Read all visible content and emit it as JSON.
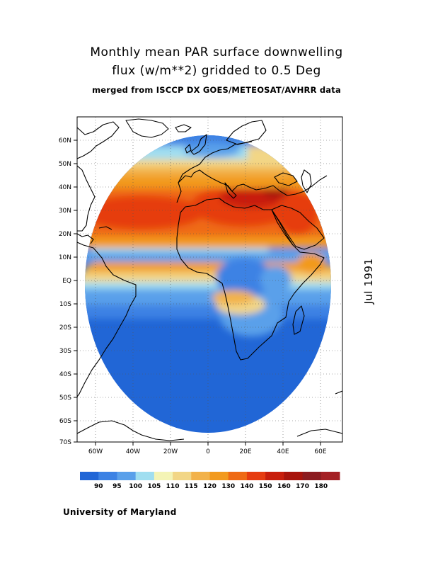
{
  "title": {
    "line1": "Monthly mean PAR surface downwelling",
    "line2": "flux (w/m**2) gridded to 0.5 Deg",
    "line3": "merged from ISCCP DX GOES/METEOSAT/AVHRR data"
  },
  "date_label": "Jul 1991",
  "footer": "University of Maryland",
  "map": {
    "lat_ticks": [
      "60N",
      "50N",
      "40N",
      "30N",
      "20N",
      "10N",
      "EQ",
      "10S",
      "20S",
      "30S",
      "40S",
      "50S",
      "60S",
      "70S"
    ],
    "lon_ticks": [
      "60W",
      "40W",
      "20W",
      "0",
      "20E",
      "40E",
      "60E"
    ],
    "lon_range": [
      -70,
      70
    ],
    "lat_range": [
      -70,
      70
    ],
    "grid": true
  },
  "colorbar": {
    "labels": [
      "90",
      "95",
      "100",
      "105",
      "110",
      "115",
      "120",
      "130",
      "140",
      "150",
      "160",
      "170",
      "180"
    ],
    "colors": [
      "#2166d6",
      "#3c82e4",
      "#5aa0ea",
      "#a0def0",
      "#f4f4b6",
      "#f2d686",
      "#f2b24a",
      "#f29a1e",
      "#ef6a14",
      "#e63c10",
      "#c81e0c",
      "#a8140c",
      "#8c1c20",
      "#a42024"
    ]
  }
}
